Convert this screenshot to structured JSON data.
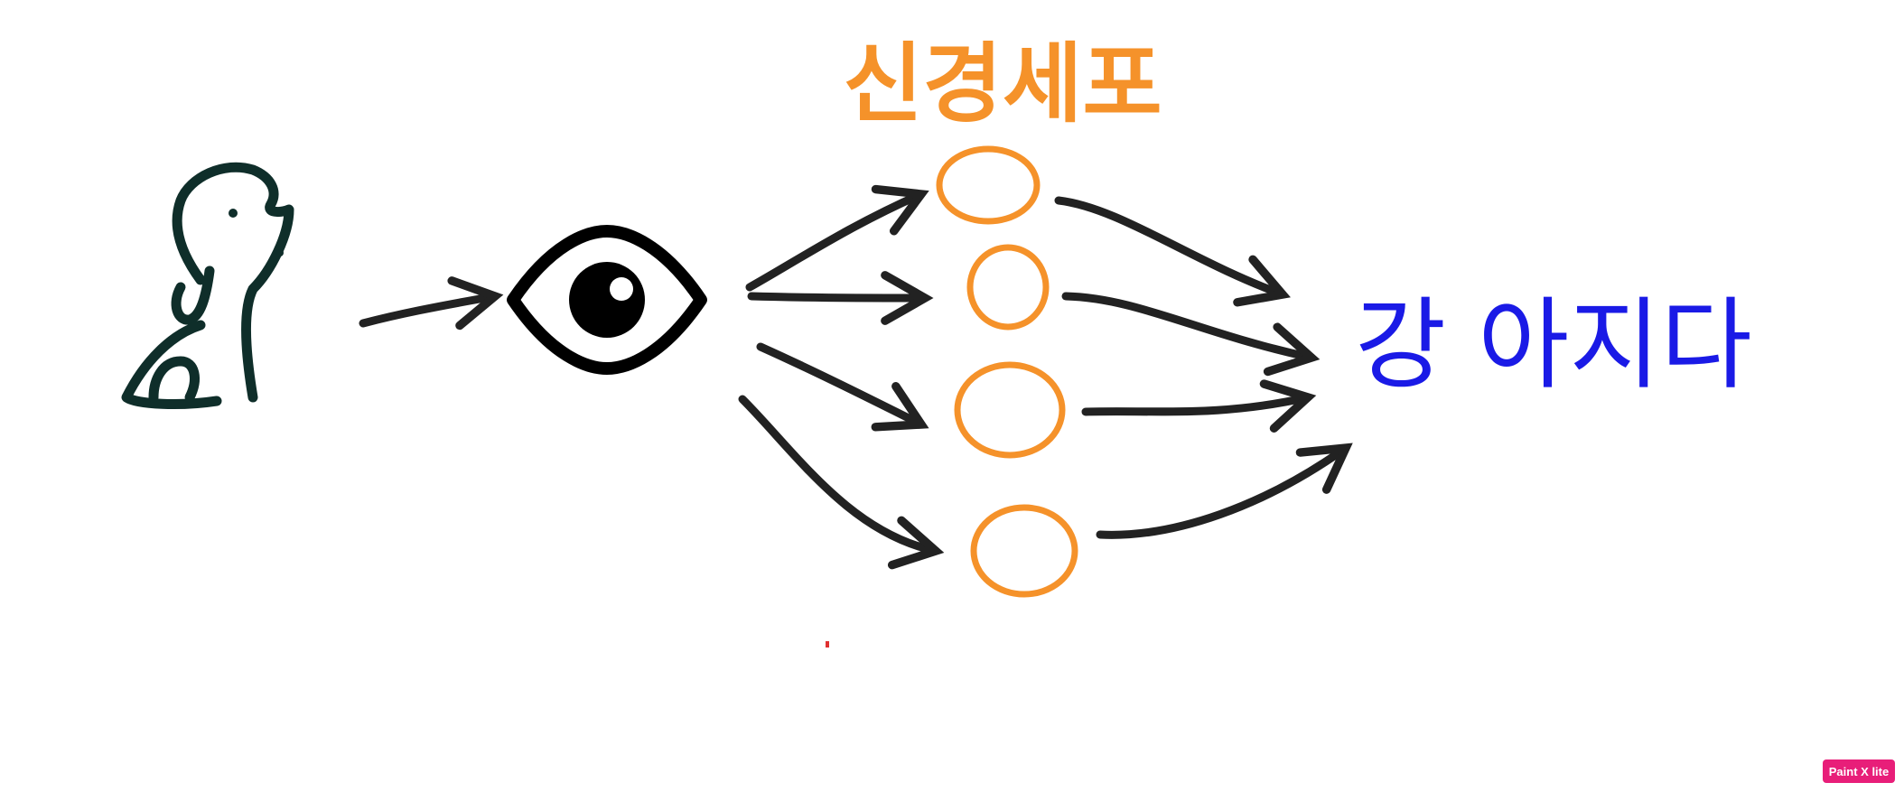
{
  "diagram": {
    "neuron_label": "신경세포",
    "output_label": "강 아지다",
    "colors": {
      "neuron": "#f5922a",
      "output": "#1a1ae6",
      "arrow": "#222222",
      "dog": "#0f2e2a"
    },
    "icons": {
      "input": "dog-icon",
      "sensor": "eye-icon"
    }
  },
  "badge": {
    "text": "Paint X lite"
  }
}
